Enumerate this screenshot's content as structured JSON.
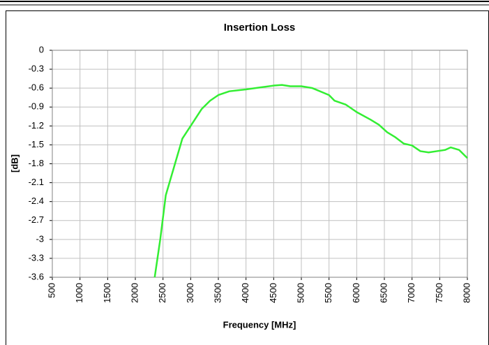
{
  "chart_data": {
    "type": "line",
    "title": "Insertion Loss",
    "x_label": "Frequency [MHz]",
    "y_label": "[dB]",
    "x": [
      2350,
      2450,
      2550,
      2700,
      2850,
      3000,
      3200,
      3350,
      3500,
      3700,
      4000,
      4250,
      4500,
      4650,
      4800,
      5000,
      5200,
      5500,
      5600,
      5800,
      6000,
      6250,
      6400,
      6550,
      6700,
      6850,
      7000,
      7150,
      7300,
      7450,
      7600,
      7700,
      7850,
      8000
    ],
    "values": [
      -3.6,
      -3.0,
      -2.3,
      -1.85,
      -1.4,
      -1.2,
      -0.93,
      -0.8,
      -0.71,
      -0.65,
      -0.62,
      -0.59,
      -0.56,
      -0.55,
      -0.57,
      -0.57,
      -0.6,
      -0.71,
      -0.8,
      -0.86,
      -0.98,
      -1.1,
      -1.18,
      -1.3,
      -1.38,
      -1.48,
      -1.51,
      -1.6,
      -1.62,
      -1.6,
      -1.58,
      -1.54,
      -1.58,
      -1.71
    ],
    "color": "#33ee33",
    "xlim": [
      500,
      8000
    ],
    "xticks": [
      500,
      1000,
      1500,
      2000,
      2500,
      3000,
      3500,
      4000,
      4500,
      5000,
      5500,
      6000,
      6500,
      7000,
      7500,
      8000
    ],
    "ylim": [
      -3.6,
      0
    ],
    "yticks": [
      0,
      -0.3,
      -0.6,
      -0.9,
      -1.2,
      -1.5,
      -1.8,
      -2.1,
      -2.4,
      -2.7,
      -3,
      -3.3,
      -3.6
    ],
    "grid": true
  }
}
